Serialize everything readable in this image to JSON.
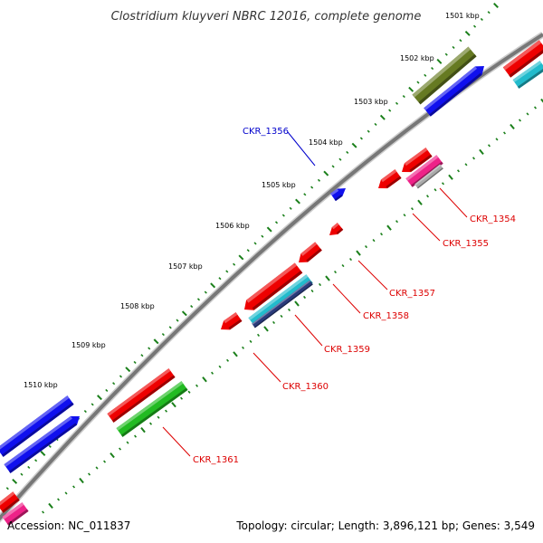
{
  "title": "Clostridium kluyveri NBRC 12016, complete genome",
  "accession": "Accession: NC_011837",
  "summary": "Topology: circular; Length: 3,896,121 bp; Genes: 3,549",
  "kbp_labels": [
    "1501 kbp",
    "1502 kbp",
    "1503 kbp",
    "1504 kbp",
    "1505 kbp",
    "1506 kbp",
    "1507 kbp",
    "1508 kbp",
    "1509 kbp",
    "1510 kbp"
  ],
  "genes": [
    {
      "id": "CKR_1354",
      "color": "#dd0000"
    },
    {
      "id": "CKR_1355",
      "color": "#dd0000"
    },
    {
      "id": "CKR_1356",
      "color": "#0000cc"
    },
    {
      "id": "CKR_1357",
      "color": "#dd0000"
    },
    {
      "id": "CKR_1358",
      "color": "#dd0000"
    },
    {
      "id": "CKR_1359",
      "color": "#dd0000"
    },
    {
      "id": "CKR_1360",
      "color": "#dd0000"
    },
    {
      "id": "CKR_1361",
      "color": "#dd0000"
    }
  ],
  "colors": {
    "backbone": "#777777",
    "tick": "#1a7f1a",
    "red": "#ee0000",
    "blue": "#1010ee",
    "olive": "#667a22",
    "green": "#22bb22",
    "cyan": "#22bbcc",
    "pink": "#ee2288",
    "gray": "#aaaaaa",
    "navy": "#2a3a7a"
  }
}
